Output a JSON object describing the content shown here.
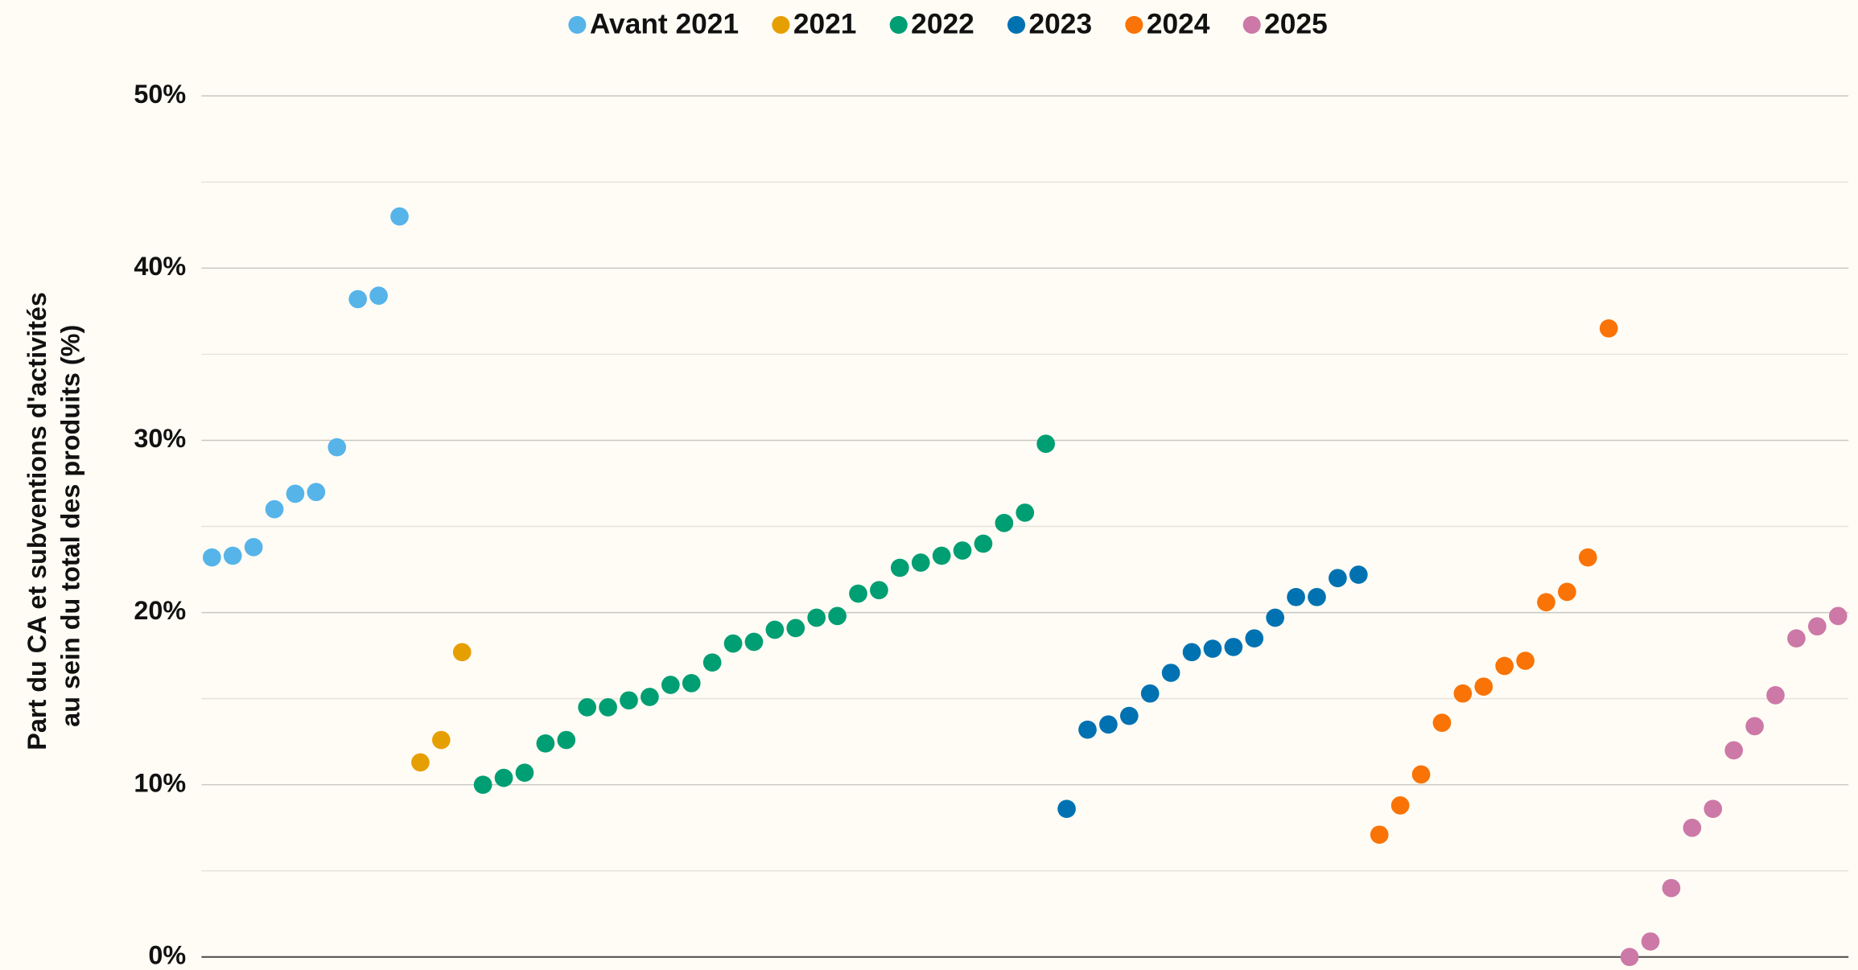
{
  "chart_data": {
    "type": "dot",
    "ylabel": [
      "Part du CA et subventions d'activités",
      "au sein du total des produits (%)"
    ],
    "ylim": [
      0,
      50
    ],
    "yticks": [
      {
        "value": 0,
        "label": "0%"
      },
      {
        "value": 10,
        "label": "10%"
      },
      {
        "value": 20,
        "label": "20%"
      },
      {
        "value": 30,
        "label": "30%"
      },
      {
        "value": 40,
        "label": "40%"
      },
      {
        "value": 50,
        "label": "50%"
      }
    ],
    "minor_yticks": [
      5,
      15,
      25,
      35,
      45
    ],
    "grid": true,
    "legend": "top",
    "series": [
      {
        "name": "Avant 2021",
        "color": "#56b4e9",
        "values": [
          23.2,
          23.3,
          23.8,
          26.0,
          26.9,
          27.0,
          29.6,
          38.2,
          38.4,
          43.0
        ]
      },
      {
        "name": "2021",
        "color": "#e69f00",
        "values": [
          11.3,
          12.6,
          17.7
        ]
      },
      {
        "name": "2022",
        "color": "#009e73",
        "values": [
          10.0,
          10.4,
          10.7,
          12.4,
          12.6,
          14.5,
          14.5,
          14.9,
          15.1,
          15.8,
          15.9,
          17.1,
          18.2,
          18.3,
          19.0,
          19.1,
          19.7,
          19.8,
          21.1,
          21.3,
          22.6,
          22.9,
          23.3,
          23.6,
          24.0,
          25.2,
          25.8,
          29.8
        ]
      },
      {
        "name": "2023",
        "color": "#0072b2",
        "values": [
          8.6,
          13.2,
          13.5,
          14.0,
          15.3,
          16.5,
          17.7,
          17.9,
          18.0,
          18.5,
          19.7,
          20.9,
          20.9,
          22.0,
          22.2
        ]
      },
      {
        "name": "2024",
        "color": "#f97306",
        "values": [
          7.1,
          8.8,
          10.6,
          13.6,
          15.3,
          15.7,
          16.9,
          17.2,
          20.6,
          21.2,
          23.2,
          36.5
        ]
      },
      {
        "name": "2025",
        "color": "#cc79a7",
        "values": [
          0.0,
          0.9,
          4.0,
          7.5,
          8.6,
          12.0,
          13.4,
          15.2,
          18.5,
          19.2,
          19.8
        ]
      }
    ]
  }
}
